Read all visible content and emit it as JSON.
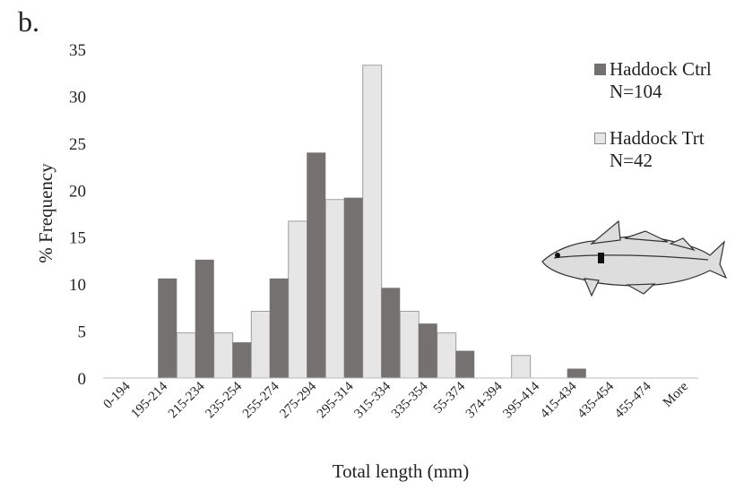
{
  "chart_data": {
    "type": "bar",
    "title": "b.",
    "y_label": "% Frequency",
    "x_label": "Total length (mm)",
    "categories": [
      "0-194",
      "195-214",
      "215-234",
      "235-254",
      "255-274",
      "275-294",
      "295-314",
      "315-334",
      "335-354",
      "55-374",
      "374-394",
      "395-414",
      "415-434",
      "435-454",
      "455-474",
      "More"
    ],
    "series": [
      {
        "name": "Haddock Ctrl\nN=104",
        "color": "#767171",
        "values": [
          0,
          10.6,
          12.6,
          3.8,
          10.6,
          24.0,
          19.2,
          9.6,
          5.8,
          2.9,
          0,
          0,
          1.0,
          0,
          0,
          0
        ]
      },
      {
        "name": "Haddock Trt\nN=42",
        "color": "#e7e6e6",
        "values": [
          0,
          4.8,
          4.8,
          7.1,
          16.7,
          19.0,
          33.3,
          7.1,
          4.8,
          0,
          2.4,
          0,
          0,
          0,
          0,
          0
        ]
      }
    ],
    "ylim": [
      0,
      35
    ],
    "yticks": [
      0,
      5,
      10,
      15,
      20,
      25,
      30,
      35
    ],
    "grid": false
  }
}
